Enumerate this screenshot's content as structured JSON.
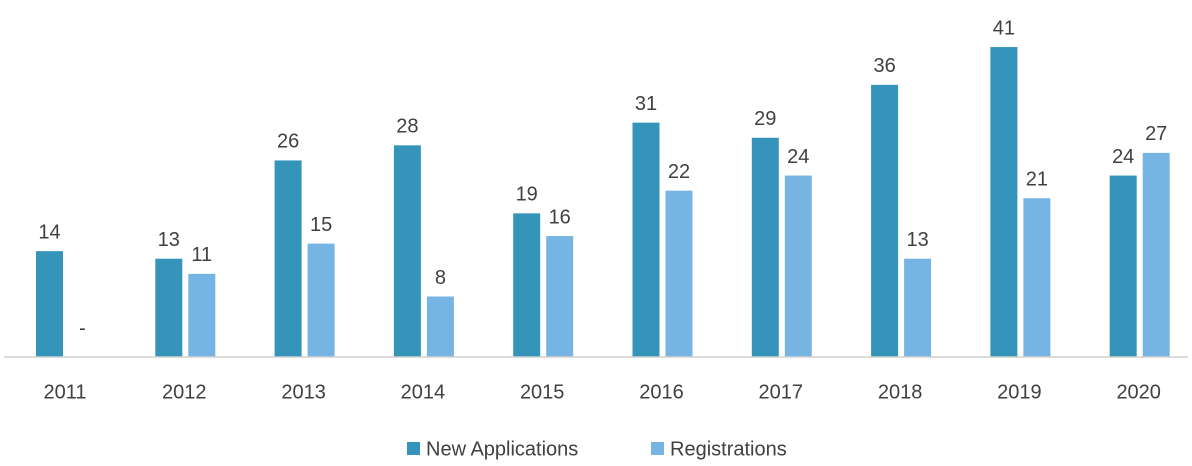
{
  "chart_data": {
    "type": "bar",
    "categories": [
      "2011",
      "2012",
      "2013",
      "2014",
      "2015",
      "2016",
      "2017",
      "2018",
      "2019",
      "2020"
    ],
    "series": [
      {
        "name": "New Applications",
        "color": "#3494ba",
        "values": [
          14,
          13,
          26,
          28,
          19,
          31,
          29,
          36,
          41,
          24
        ]
      },
      {
        "name": "Registrations",
        "color": "#76b5e3",
        "values": [
          0,
          11,
          15,
          8,
          16,
          22,
          24,
          13,
          21,
          27
        ],
        "value_labels": [
          "-",
          "11",
          "15",
          "8",
          "16",
          "22",
          "24",
          "13",
          "21",
          "27"
        ]
      }
    ],
    "legend": "bottom"
  }
}
